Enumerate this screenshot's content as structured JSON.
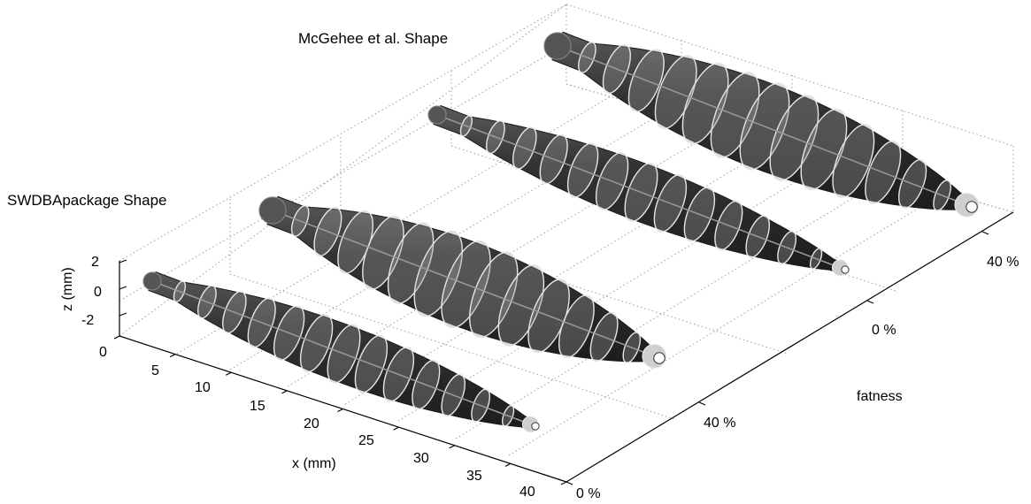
{
  "titles": {
    "top": "McGehee et al. Shape",
    "left": "SWDBApackage Shape"
  },
  "axes": {
    "x": {
      "label": "x (mm)",
      "ticks": [
        "0",
        "5",
        "10",
        "15",
        "20",
        "25",
        "30",
        "35",
        "40"
      ]
    },
    "z": {
      "label": "z (mm)",
      "ticks": [
        "2",
        "0",
        "-2"
      ]
    },
    "fatness": {
      "label": "fatness",
      "ticks": [
        "0 %",
        "40 %",
        "0 %",
        "40 %"
      ]
    }
  },
  "colors": {
    "body": "#333333",
    "rib": "#9a9a9a",
    "rib_outline": "#e6e6e6",
    "axis": "#000000",
    "grid": "#9c9c9c"
  }
}
